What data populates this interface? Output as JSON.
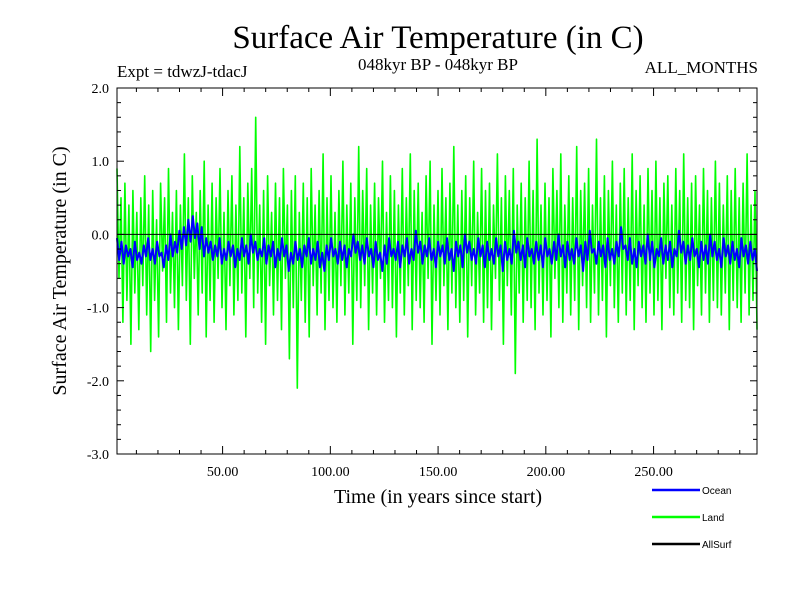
{
  "chart_data": {
    "type": "line",
    "title": "Surface Air Temperature (in C)",
    "subtitle_left": "Expt = tdwzJ-tdacJ",
    "subtitle_center": "048kyr BP - 048kyr BP",
    "subtitle_right": "ALL_MONTHS",
    "xlabel": "Time (in years since start)",
    "ylabel": "Surface Air Temperature (in C)",
    "xlim": [
      1,
      298
    ],
    "ylim": [
      -3.0,
      2.0
    ],
    "x_ticks": [
      50,
      100,
      150,
      200,
      250
    ],
    "x_tick_labels": [
      "50.00",
      "100.00",
      "150.00",
      "200.00",
      "250.00"
    ],
    "y_ticks": [
      -3.0,
      -2.0,
      -1.0,
      0.0,
      1.0,
      2.0
    ],
    "y_tick_labels": [
      "-3.0",
      "-2.0",
      "-1.0",
      "0.0",
      "1.0",
      "2.0"
    ],
    "reference_line_y": 0.0,
    "grid": false,
    "legend_position": "bottom-right",
    "series": [
      {
        "name": "Land",
        "color": "#00ff00",
        "note_sampling": "monthly, 12 per year",
        "x_start": 1,
        "x_step": 0.0833,
        "values": [
          0.9,
          -0.6,
          0.5,
          -1.2,
          0.7,
          -0.9,
          0.4,
          -1.5,
          0.6,
          -0.8,
          0.3,
          -1.3,
          0.5,
          -0.7,
          0.8,
          -1.1,
          0.4,
          -1.6,
          0.6,
          -0.9,
          0.2,
          -1.4,
          0.7,
          -0.5,
          0.5,
          -1.2,
          0.9,
          -0.8,
          0.3,
          -1.0,
          0.6,
          -1.3,
          0.4,
          -0.7,
          1.1,
          -0.9,
          0.5,
          -1.5,
          0.8,
          -0.6,
          0.3,
          -1.1,
          0.6,
          -0.8,
          1.0,
          -1.4,
          0.4,
          -0.9,
          0.7,
          -1.2,
          0.5,
          -0.6,
          0.9,
          -1.0,
          0.3,
          -1.3,
          0.6,
          -0.7,
          0.8,
          -1.1,
          0.4,
          -0.9,
          1.2,
          -0.8,
          0.5,
          -1.4,
          0.7,
          -0.6,
          0.9,
          -1.0,
          1.6,
          -0.8,
          0.4,
          -1.2,
          0.6,
          -1.5,
          0.8,
          -0.7,
          0.3,
          -1.1,
          0.7,
          -0.9,
          0.5,
          -1.3,
          0.9,
          -0.6,
          0.4,
          -1.7,
          0.6,
          -1.0,
          0.8,
          -2.1,
          0.3,
          -0.9,
          0.7,
          -1.2,
          0.5,
          -1.4,
          0.9,
          -0.7,
          0.4,
          -1.1,
          0.6,
          -0.8,
          1.1,
          -1.3,
          0.5,
          -0.9,
          0.8,
          -1.0,
          0.3,
          -1.2,
          0.6,
          -0.7,
          1.0,
          -1.1,
          0.4,
          -0.8,
          0.7,
          -1.5,
          0.5,
          -0.9,
          1.2,
          -1.0,
          0.6,
          -0.7,
          0.9,
          -1.3,
          0.4,
          -0.8,
          0.7,
          -1.1,
          0.5,
          -0.6,
          1.0,
          -1.2,
          0.3,
          -0.9,
          0.8,
          -1.0,
          0.6,
          -1.4,
          0.4,
          -0.8,
          0.9,
          -1.1,
          0.5,
          -0.7,
          1.1,
          -1.3,
          0.6,
          -0.9,
          0.7,
          -1.0,
          0.3,
          -1.2,
          0.8,
          -0.6,
          1.0,
          -1.5,
          0.4,
          -0.9,
          0.6,
          -1.1,
          0.9,
          -0.7,
          0.5,
          -1.3,
          0.7,
          -0.8,
          1.2,
          -1.0,
          0.4,
          -1.2,
          0.6,
          -0.9,
          0.8,
          -1.4,
          0.5,
          -0.7,
          1.0,
          -1.1,
          0.3,
          -0.8,
          0.9,
          -1.2,
          0.6,
          -1.0,
          0.7,
          -1.3,
          0.4,
          -0.6,
          1.1,
          -0.9,
          0.5,
          -1.5,
          0.8,
          -0.7,
          0.6,
          -1.1,
          0.9,
          -1.9,
          0.4,
          -0.8,
          0.7,
          -1.2,
          0.5,
          -0.9,
          1.0,
          -1.0,
          0.6,
          -1.3,
          1.3,
          -0.8,
          0.4,
          -1.1,
          0.7,
          -0.9,
          0.5,
          -1.4,
          0.9,
          -0.6,
          0.6,
          -1.0,
          1.1,
          -1.2,
          0.4,
          -0.8,
          0.8,
          -1.1,
          0.5,
          -0.9,
          1.2,
          -1.3,
          0.6,
          -0.7,
          0.7,
          -1.0,
          0.9,
          -1.2,
          0.4,
          -0.8,
          1.3,
          -1.1,
          0.5,
          -0.9,
          0.8,
          -1.4,
          0.6,
          -0.7,
          1.0,
          -1.0,
          0.4,
          -1.2,
          0.7,
          -0.8,
          0.9,
          -1.1,
          0.5,
          -0.9,
          1.1,
          -1.3,
          0.6,
          -0.7,
          0.8,
          -1.0,
          0.4,
          -1.2,
          0.9,
          -0.8,
          0.6,
          -1.1,
          1.0,
          -0.9,
          0.5,
          -1.3,
          0.7,
          -0.6,
          0.8,
          -1.0,
          0.4,
          -1.1,
          0.9,
          -0.8,
          0.6,
          -1.2,
          1.1,
          -0.9,
          0.5,
          -1.0,
          0.7,
          -1.3,
          0.8,
          -0.7,
          0.4,
          -1.1,
          0.9,
          -0.8,
          0.6,
          -1.2,
          0.5,
          -0.9,
          1.0,
          -1.0,
          0.7,
          -1.1,
          0.4,
          -0.8,
          0.8,
          -1.3,
          0.6,
          -0.9,
          0.9,
          -1.0,
          0.5,
          -1.2,
          0.7,
          -0.8,
          1.1,
          -1.1,
          0.4,
          -0.9,
          0.6,
          -1.3
        ]
      },
      {
        "name": "Ocean",
        "color": "#0000ff",
        "note_sampling": "monthly, 12 per year",
        "x_start": 1,
        "x_step": 0.0833,
        "values": [
          -0.05,
          -0.35,
          -0.1,
          -0.4,
          -0.15,
          -0.3,
          -0.2,
          -0.45,
          -0.1,
          -0.35,
          -0.25,
          -0.4,
          -0.15,
          -0.3,
          -0.05,
          -0.35,
          -0.2,
          -0.4,
          -0.1,
          -0.3,
          -0.25,
          -0.45,
          -0.15,
          -0.35,
          0.0,
          -0.3,
          -0.1,
          -0.25,
          0.05,
          -0.2,
          0.1,
          -0.15,
          0.2,
          -0.1,
          0.25,
          -0.05,
          0.15,
          -0.2,
          0.1,
          -0.3,
          -0.05,
          -0.25,
          -0.1,
          -0.35,
          -0.15,
          -0.3,
          -0.05,
          -0.4,
          -0.2,
          -0.35,
          -0.1,
          -0.3,
          -0.15,
          -0.45,
          -0.2,
          -0.35,
          -0.05,
          -0.3,
          -0.15,
          -0.4,
          0.0,
          -0.25,
          -0.1,
          -0.35,
          -0.2,
          -0.3,
          -0.05,
          -0.4,
          -0.15,
          -0.3,
          -0.1,
          -0.45,
          -0.2,
          -0.35,
          -0.05,
          -0.3,
          -0.15,
          -0.5,
          -0.25,
          -0.4,
          -0.1,
          -0.35,
          -0.2,
          -0.45,
          -0.15,
          -0.3,
          -0.05,
          -0.4,
          -0.2,
          -0.35,
          -0.1,
          -0.45,
          -0.25,
          -0.5,
          -0.15,
          -0.35,
          -0.05,
          -0.3,
          -0.2,
          -0.4,
          -0.1,
          -0.35,
          -0.15,
          -0.45,
          -0.2,
          -0.3,
          0.0,
          -0.25,
          -0.1,
          -0.35,
          -0.15,
          -0.4,
          -0.05,
          -0.3,
          -0.2,
          -0.45,
          -0.1,
          -0.35,
          -0.25,
          -0.5,
          -0.15,
          -0.4,
          -0.05,
          -0.3,
          -0.2,
          -0.35,
          -0.1,
          -0.45,
          -0.15,
          -0.3,
          -0.05,
          -0.4,
          -0.2,
          -0.35,
          0.05,
          -0.25,
          -0.1,
          -0.4,
          -0.15,
          -0.3,
          -0.05,
          -0.35,
          -0.2,
          -0.45,
          -0.1,
          -0.3,
          -0.15,
          -0.4,
          -0.05,
          -0.35,
          -0.2,
          -0.5,
          -0.1,
          -0.3,
          -0.15,
          -0.45,
          0.0,
          -0.25,
          -0.1,
          -0.35,
          -0.2,
          -0.4,
          -0.05,
          -0.3,
          -0.15,
          -0.45,
          -0.1,
          -0.35,
          -0.2,
          -0.4,
          -0.05,
          -0.3,
          -0.15,
          -0.5,
          -0.1,
          -0.35,
          -0.2,
          -0.4,
          0.05,
          -0.25,
          -0.1,
          -0.35,
          -0.15,
          -0.45,
          -0.05,
          -0.3,
          -0.2,
          -0.4,
          -0.1,
          -0.35,
          -0.15,
          -0.45,
          -0.05,
          -0.3,
          -0.2,
          -0.4,
          -0.1,
          -0.35,
          0.0,
          -0.3,
          -0.15,
          -0.45,
          -0.1,
          -0.35,
          -0.2,
          -0.4,
          -0.05,
          -0.3,
          -0.15,
          -0.5,
          -0.1,
          -0.35,
          0.05,
          -0.25,
          -0.2,
          -0.4,
          -0.1,
          -0.3,
          -0.15,
          -0.45,
          -0.05,
          -0.35,
          -0.2,
          -0.4,
          -0.1,
          -0.3,
          0.1,
          -0.2,
          -0.15,
          -0.35,
          -0.05,
          -0.4,
          -0.2,
          -0.45,
          -0.1,
          -0.3,
          -0.15,
          -0.4,
          0.0,
          -0.35,
          -0.1,
          -0.45,
          -0.2,
          -0.3,
          -0.05,
          -0.4,
          -0.15,
          -0.35,
          -0.1,
          -0.45,
          -0.2,
          -0.3,
          0.05,
          -0.25,
          -0.1,
          -0.4,
          -0.15,
          -0.35,
          -0.05,
          -0.3,
          -0.2,
          -0.45,
          -0.1,
          -0.35,
          -0.15,
          -0.4,
          0.0,
          -0.3,
          -0.1,
          -0.35,
          -0.2,
          -0.45,
          -0.05,
          -0.3,
          -0.15,
          -0.4,
          -0.1,
          -0.35,
          -0.2,
          -0.45,
          -0.05,
          -0.3,
          -0.15,
          -0.4,
          -0.1,
          -0.35,
          -0.2,
          -0.5
        ]
      },
      {
        "name": "AllSurf",
        "color": "#000000",
        "note_sampling": "not visible in plot area",
        "x_start": 1,
        "x_step": 0.0833,
        "values": []
      }
    ]
  }
}
